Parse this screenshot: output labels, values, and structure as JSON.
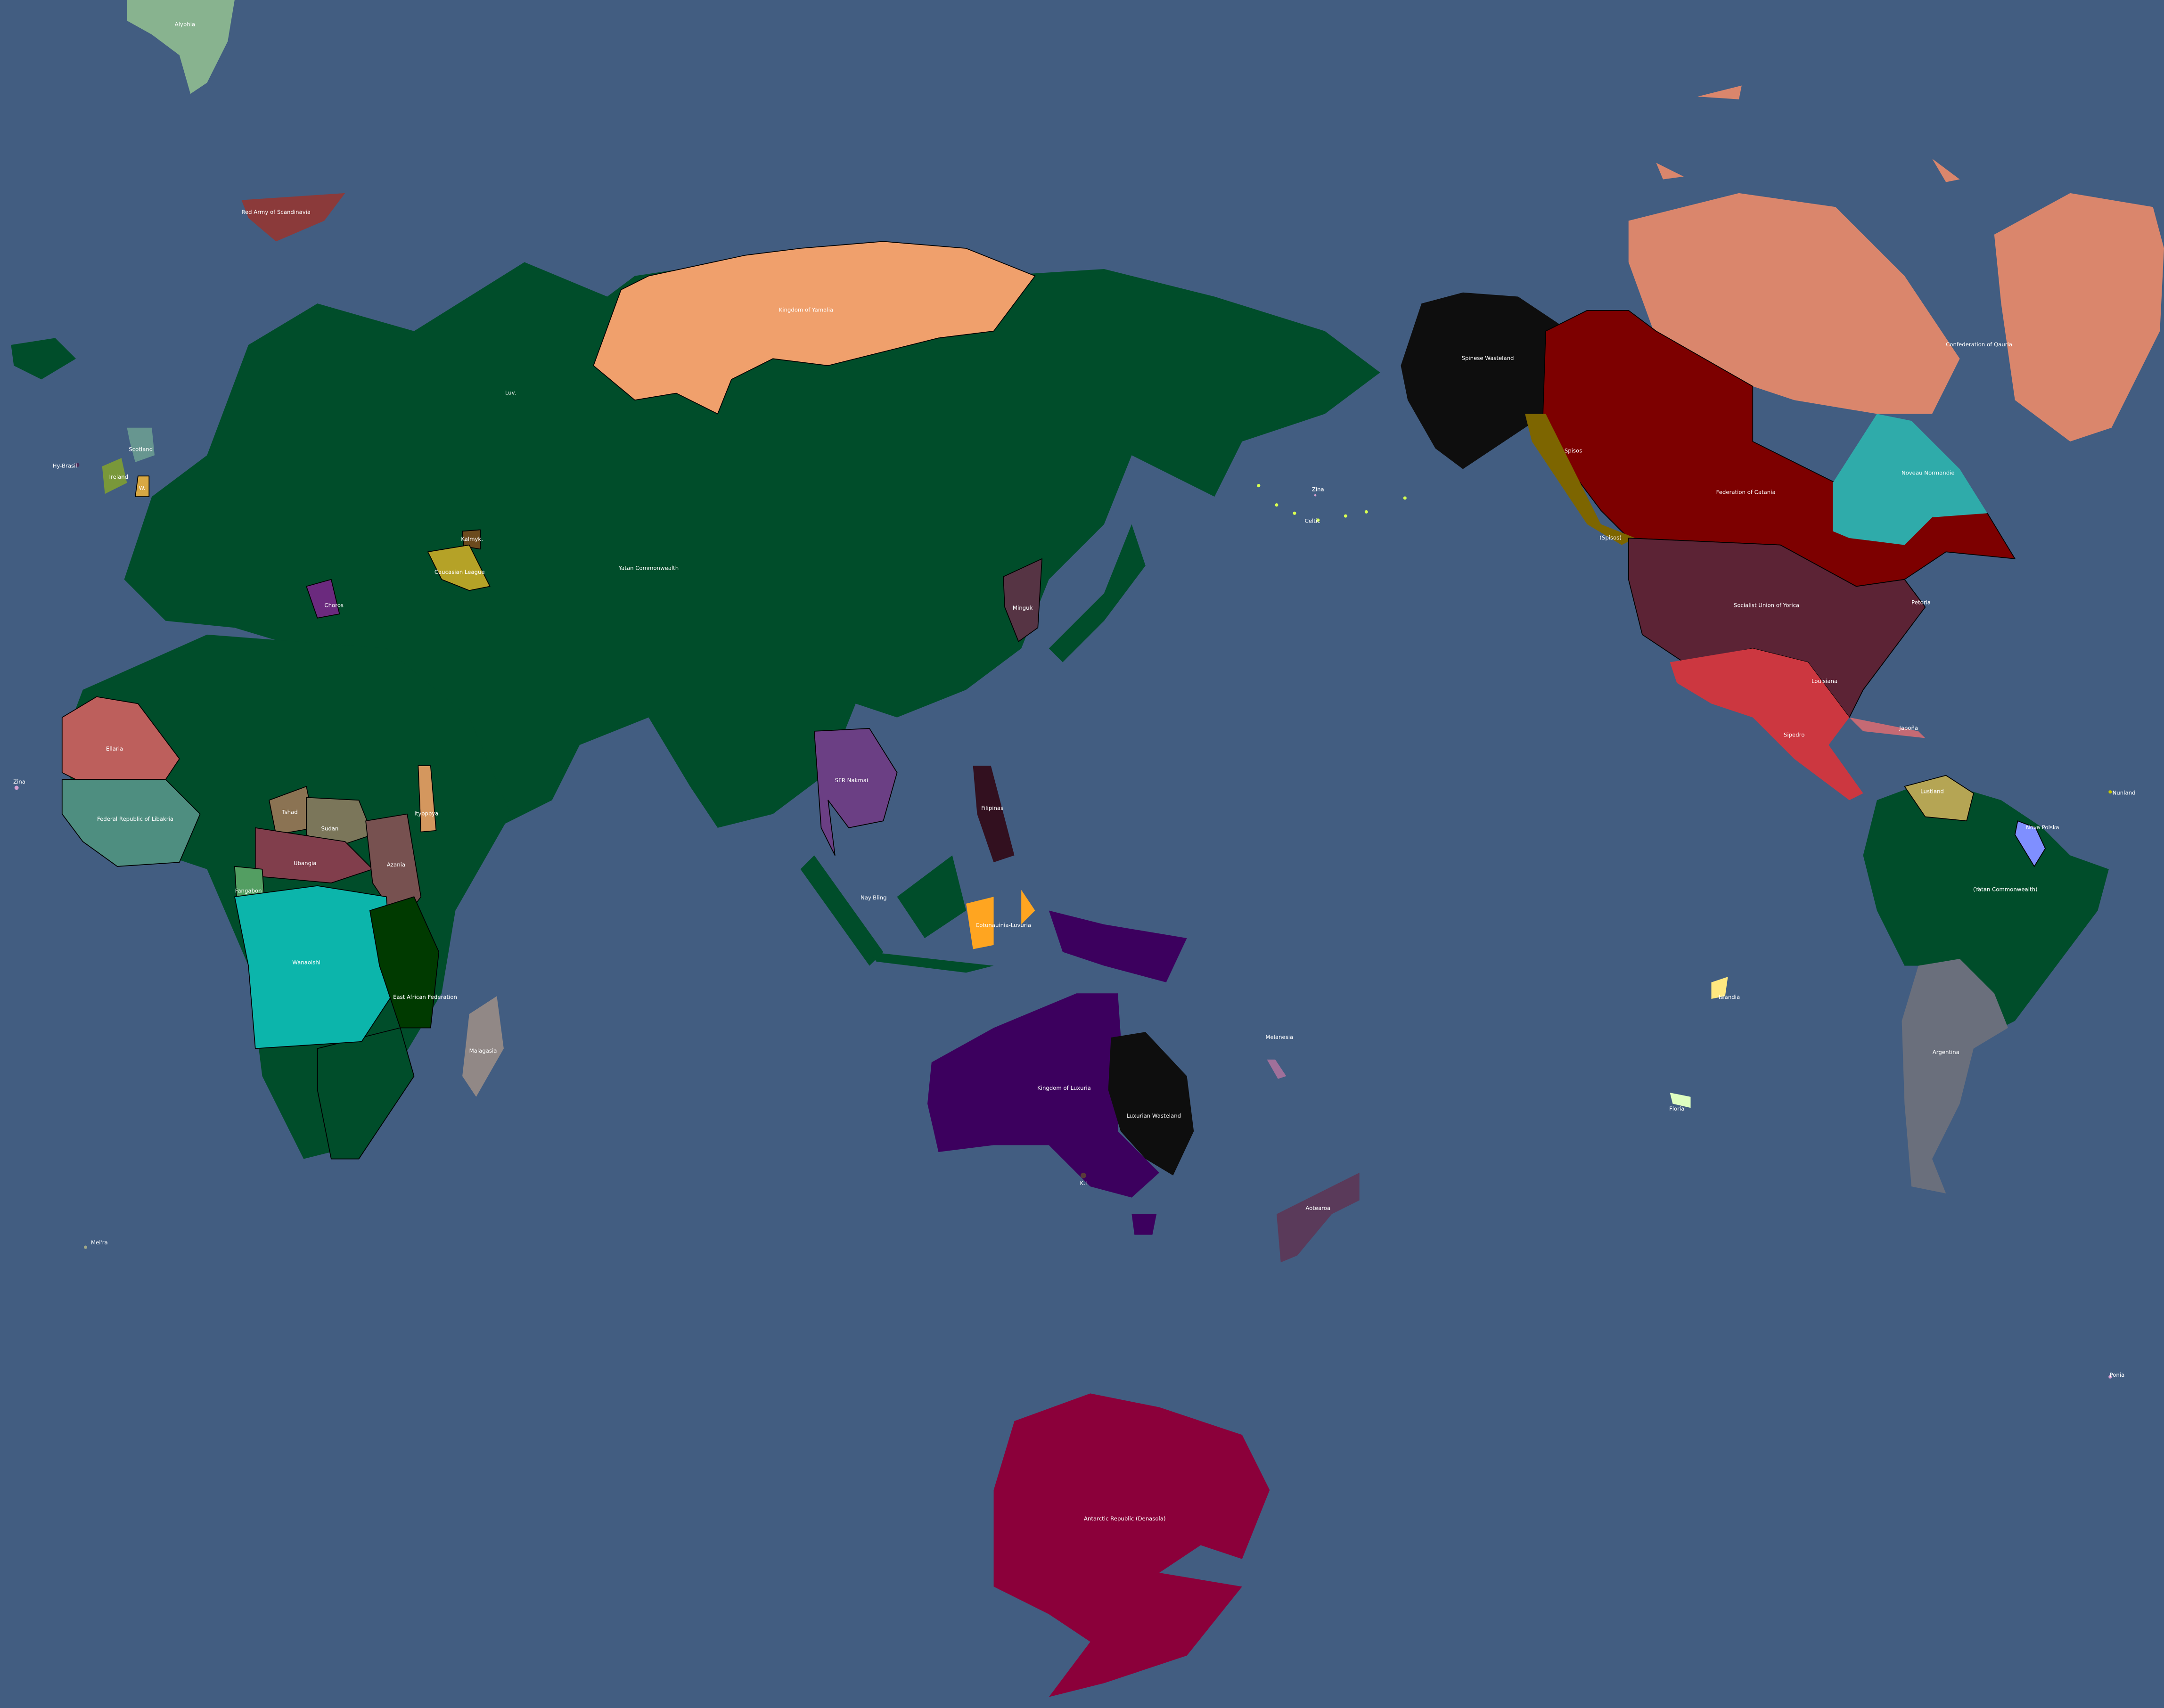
{
  "ocean_color": "#425d81",
  "base_land_color": "#004d2a",
  "countries": [
    {
      "name": "Alyphia",
      "color": "#88b38f"
    },
    {
      "name": "Red Army of Scandinavia",
      "color": "#8b3a3a"
    },
    {
      "name": "Kingdom of Yamalia",
      "color": "#f0a06c"
    },
    {
      "name": "Yatan Commonwealth",
      "color": "#004d2a"
    },
    {
      "name": "Luv.",
      "color": "#e8b4d8"
    },
    {
      "name": "Kalmyk.",
      "color": "#6b4a1e"
    },
    {
      "name": "Caucasian League",
      "color": "#b5a227"
    },
    {
      "name": "Choros",
      "color": "#6b2a7e"
    },
    {
      "name": "Scotland",
      "color": "#679690"
    },
    {
      "name": "Ireland",
      "color": "#79983a"
    },
    {
      "name": "W.",
      "color": "#d8a843"
    },
    {
      "name": "Hy-Brasil",
      "color": "#4a2c5a"
    },
    {
      "name": "Ellaria",
      "color": "#bd5f5c"
    },
    {
      "name": "Federal Republic of Libakria",
      "color": "#4e8e80"
    },
    {
      "name": "Tshad",
      "color": "#8b7353"
    },
    {
      "name": "Sudan",
      "color": "#7b765a"
    },
    {
      "name": "Ubangia",
      "color": "#813e4c"
    },
    {
      "name": "Azania",
      "color": "#775150"
    },
    {
      "name": "Ityoppya",
      "color": "#d4975e"
    },
    {
      "name": "Fangabon",
      "color": "#539e62"
    },
    {
      "name": "Wanaoishi",
      "color": "#0cb5ab"
    },
    {
      "name": "East African Federation",
      "color": "#003a00"
    },
    {
      "name": "Malagasia",
      "color": "#918886"
    },
    {
      "name": "Minguk",
      "color": "#563444"
    },
    {
      "name": "SFR Nakmai",
      "color": "#6b3f84"
    },
    {
      "name": "Filipinas",
      "color": "#32101f"
    },
    {
      "name": "Nay'Bling",
      "color": "#c8c0e0"
    },
    {
      "name": "Cotunauinia-Luvuria",
      "color": "#ffa520"
    },
    {
      "name": "Kingdom of Luxuria",
      "color": "#3c005e"
    },
    {
      "name": "Luxurian Wasteland",
      "color": "#0e0e0e"
    },
    {
      "name": "K.I",
      "color": "#5a3a3a"
    },
    {
      "name": "Melanesia",
      "color": "#a0709a"
    },
    {
      "name": "Aotearoa",
      "color": "#5a3a5a"
    },
    {
      "name": "Antarctic Republic (Denasola)",
      "color": "#8b003a"
    },
    {
      "name": "Spinese Wasteland",
      "color": "#0e0e0e"
    },
    {
      "name": "Federation of Catania",
      "color": "#7d0000"
    },
    {
      "name": "Spisos",
      "color": "#7d6500"
    },
    {
      "name": "(Spisos)",
      "color": "#7d6500"
    },
    {
      "name": "Confederation of Qauria",
      "color": "#da866c"
    },
    {
      "name": "Noveau Normandie",
      "color": "#2fabaa"
    },
    {
      "name": "Socialist Union of Yorica",
      "color": "#5c2335"
    },
    {
      "name": "Petoria",
      "color": "#5c2335"
    },
    {
      "name": "Louisiana",
      "color": "#4a4a4a"
    },
    {
      "name": "Sipedro",
      "color": "#cc3740"
    },
    {
      "name": "Japoña",
      "color": "#c56a74"
    },
    {
      "name": "Lustland",
      "color": "#b5a554"
    },
    {
      "name": "Nova Polska",
      "color": "#7f8fff"
    },
    {
      "name": "Nunland",
      "color": "#c7c700"
    },
    {
      "name": "(Yatan Commonwealth)",
      "color": "#004d2a"
    },
    {
      "name": "Argentina",
      "color": "#6a6f7c"
    },
    {
      "name": "Islandia",
      "color": "#ffe880"
    },
    {
      "name": "Floria",
      "color": "#dfffc0"
    },
    {
      "name": "Zina",
      "color": "#d8a0d0"
    },
    {
      "name": "Celtic",
      "color": "#d8ff50"
    },
    {
      "name": "Zina",
      "color": "#d8a0d0"
    },
    {
      "name": "Mei'ra",
      "color": "#a0a888"
    },
    {
      "name": "Ponia",
      "color": "#d8a0d0"
    }
  ],
  "southern_africa_color": "#004d2a",
  "png_color": "#3c005e"
}
